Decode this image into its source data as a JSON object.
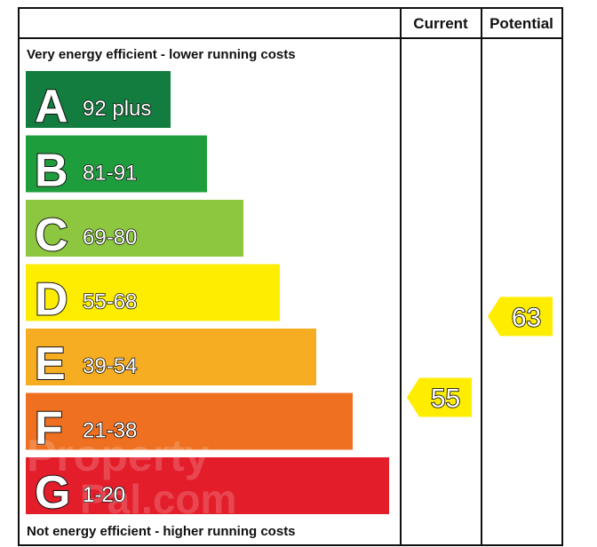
{
  "columns": {
    "current": "Current",
    "potential": "Potential"
  },
  "captions": {
    "top": "Very energy efficient - lower running costs",
    "bottom": "Not energy efficient - higher running costs"
  },
  "watermark": {
    "line1": "Property",
    "line2": "Pal.com"
  },
  "chart_data": {
    "type": "bar",
    "categories": [
      "A",
      "B",
      "C",
      "D",
      "E",
      "F",
      "G"
    ],
    "bands": [
      {
        "letter": "A",
        "range": "92 plus",
        "min": 92,
        "max": 100,
        "color": "#127d3e"
      },
      {
        "letter": "B",
        "range": "81-91",
        "min": 81,
        "max": 91,
        "color": "#1d9d3c"
      },
      {
        "letter": "C",
        "range": "69-80",
        "min": 69,
        "max": 80,
        "color": "#8dc63f"
      },
      {
        "letter": "D",
        "range": "55-68",
        "min": 55,
        "max": 68,
        "color": "#ffed00"
      },
      {
        "letter": "E",
        "range": "39-54",
        "min": 39,
        "max": 54,
        "color": "#f6ad22"
      },
      {
        "letter": "F",
        "range": "21-38",
        "min": 21,
        "max": 38,
        "color": "#ef7021"
      },
      {
        "letter": "G",
        "range": "1-20",
        "min": 1,
        "max": 20,
        "color": "#e41d2a"
      }
    ],
    "ratings": [
      {
        "column": "Current",
        "value": 55,
        "label": "55",
        "band": "D",
        "color": "#ffed00"
      },
      {
        "column": "Potential",
        "value": 63,
        "label": "63",
        "band": "D",
        "color": "#ffed00"
      }
    ],
    "ylim": [
      1,
      100
    ]
  }
}
